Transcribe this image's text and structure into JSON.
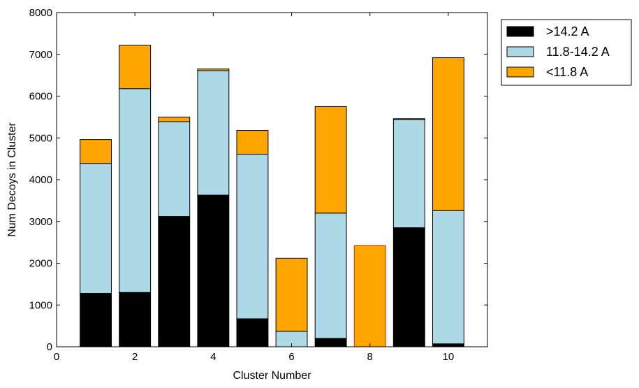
{
  "chart_data": {
    "type": "bar",
    "stacked": true,
    "title": "",
    "xlabel": "Cluster Number",
    "ylabel": "Num Decoys in Cluster",
    "xlim": [
      0,
      11
    ],
    "ylim": [
      0,
      8000
    ],
    "xticks": [
      0,
      2,
      4,
      6,
      8,
      10
    ],
    "yticks": [
      0,
      1000,
      2000,
      3000,
      4000,
      5000,
      6000,
      7000,
      8000
    ],
    "categories": [
      1,
      2,
      3,
      4,
      5,
      6,
      7,
      8,
      9,
      10
    ],
    "grid": false,
    "legend_position": "outside-top-right",
    "series": [
      {
        "name": ">14.2 A",
        "color": "#000000",
        "values": [
          1280,
          1300,
          3120,
          3630,
          670,
          0,
          200,
          0,
          2850,
          70
        ]
      },
      {
        "name": "11.8-14.2 A",
        "color": "#add8e6",
        "values": [
          3110,
          4880,
          2270,
          2980,
          3940,
          370,
          3000,
          0,
          2590,
          3190
        ]
      },
      {
        "name": "<11.8 A",
        "color": "#ffa500",
        "values": [
          570,
          1040,
          110,
          40,
          570,
          1750,
          2550,
          2420,
          20,
          3660
        ]
      }
    ]
  }
}
